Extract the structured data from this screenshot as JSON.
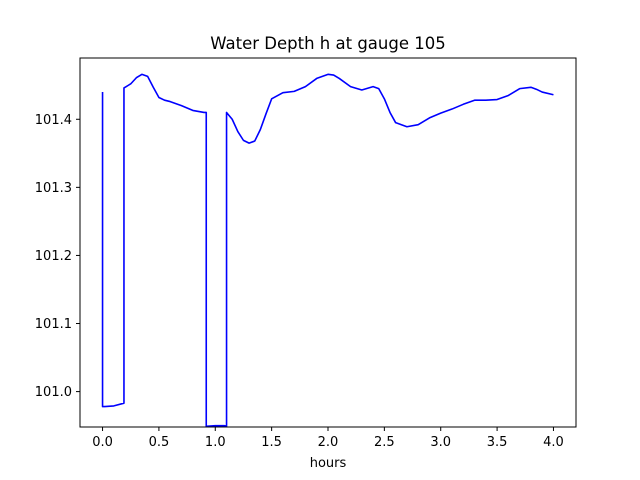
{
  "chart_data": {
    "type": "line",
    "title": "Water Depth h at gauge 105",
    "xlabel": "hours",
    "ylabel": "",
    "xlim": [
      -0.2,
      4.2
    ],
    "ylim": [
      100.948,
      101.49
    ],
    "xticks": [
      0.0,
      0.5,
      1.0,
      1.5,
      2.0,
      2.5,
      3.0,
      3.5,
      4.0
    ],
    "xtick_labels": [
      "0.0",
      "0.5",
      "1.0",
      "1.5",
      "2.0",
      "2.5",
      "3.0",
      "3.5",
      "4.0"
    ],
    "yticks": [
      101.0,
      101.1,
      101.2,
      101.3,
      101.4
    ],
    "ytick_labels": [
      "101.0",
      "101.1",
      "101.2",
      "101.3",
      "101.4"
    ],
    "grid": false,
    "series": [
      {
        "color": "#0000ff",
        "x": [
          0.0,
          0.0,
          0.02,
          0.1,
          0.19,
          0.19,
          0.25,
          0.3,
          0.35,
          0.4,
          0.45,
          0.5,
          0.55,
          0.6,
          0.7,
          0.8,
          0.9,
          0.92,
          0.92,
          1.0,
          1.08,
          1.1,
          1.1,
          1.15,
          1.2,
          1.25,
          1.3,
          1.35,
          1.4,
          1.45,
          1.5,
          1.6,
          1.7,
          1.8,
          1.9,
          2.0,
          2.05,
          2.1,
          2.2,
          2.3,
          2.4,
          2.45,
          2.5,
          2.55,
          2.6,
          2.7,
          2.8,
          2.9,
          3.0,
          3.1,
          3.2,
          3.3,
          3.4,
          3.5,
          3.6,
          3.7,
          3.8,
          3.85,
          3.9,
          4.0
        ],
        "y": [
          101.44,
          100.978,
          100.978,
          100.979,
          100.983,
          101.446,
          101.452,
          101.461,
          101.466,
          101.463,
          101.447,
          101.432,
          101.428,
          101.426,
          101.42,
          101.413,
          101.41,
          101.41,
          100.949,
          100.95,
          100.95,
          100.949,
          101.41,
          101.4,
          101.382,
          101.369,
          101.365,
          101.368,
          101.385,
          101.408,
          101.43,
          101.439,
          101.441,
          101.448,
          101.46,
          101.466,
          101.465,
          101.46,
          101.448,
          101.443,
          101.448,
          101.445,
          101.43,
          101.41,
          101.395,
          101.389,
          101.392,
          101.402,
          101.409,
          101.415,
          101.422,
          101.428,
          101.428,
          101.429,
          101.435,
          101.445,
          101.447,
          101.444,
          101.44,
          101.436
        ]
      }
    ]
  }
}
